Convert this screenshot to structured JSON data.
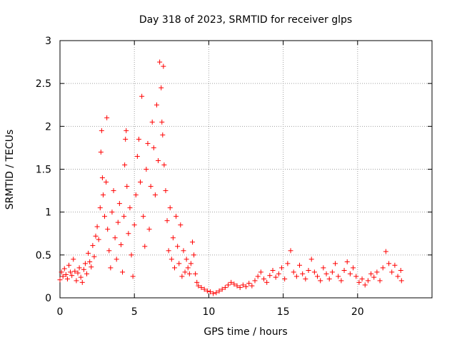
{
  "chart_data": {
    "type": "scatter",
    "title": "Day 318 of 2023, SRMTID for receiver glps",
    "xlabel": "GPS time / hours",
    "ylabel": "SRMTID / TECUs",
    "xlim": [
      0,
      25
    ],
    "ylim": [
      0,
      3
    ],
    "xticks": [
      0,
      5,
      10,
      15,
      20
    ],
    "yticks": [
      0,
      0.5,
      1,
      1.5,
      2,
      2.5,
      3
    ],
    "xtick_labels": [
      "0",
      "5",
      "10",
      "15",
      "20"
    ],
    "ytick_labels": [
      "0",
      "0.5",
      "1",
      "1.5",
      "2",
      "2.5",
      "3"
    ],
    "grid": true,
    "marker": "+",
    "color": "#ff0000",
    "series": [
      {
        "name": "SRMTID",
        "points": [
          [
            0.0,
            0.21
          ],
          [
            0.1,
            0.3
          ],
          [
            0.2,
            0.25
          ],
          [
            0.3,
            0.34
          ],
          [
            0.4,
            0.27
          ],
          [
            0.5,
            0.22
          ],
          [
            0.6,
            0.38
          ],
          [
            0.7,
            0.3
          ],
          [
            0.8,
            0.26
          ],
          [
            0.9,
            0.45
          ],
          [
            1.0,
            0.31
          ],
          [
            1.1,
            0.2
          ],
          [
            1.2,
            0.29
          ],
          [
            1.3,
            0.35
          ],
          [
            1.4,
            0.24
          ],
          [
            1.5,
            0.18
          ],
          [
            1.6,
            0.33
          ],
          [
            1.7,
            0.4
          ],
          [
            1.8,
            0.28
          ],
          [
            1.9,
            0.52
          ],
          [
            2.0,
            0.42
          ],
          [
            2.1,
            0.36
          ],
          [
            2.2,
            0.61
          ],
          [
            2.3,
            0.48
          ],
          [
            2.4,
            0.72
          ],
          [
            2.5,
            0.83
          ],
          [
            2.6,
            0.68
          ],
          [
            2.7,
            1.05
          ],
          [
            2.75,
            1.7
          ],
          [
            2.8,
            1.95
          ],
          [
            2.85,
            1.4
          ],
          [
            2.9,
            1.2
          ],
          [
            3.0,
            0.95
          ],
          [
            3.1,
            1.35
          ],
          [
            3.15,
            2.1
          ],
          [
            3.2,
            0.8
          ],
          [
            3.3,
            0.55
          ],
          [
            3.4,
            0.35
          ],
          [
            3.5,
            1.0
          ],
          [
            3.6,
            1.25
          ],
          [
            3.7,
            0.7
          ],
          [
            3.8,
            0.45
          ],
          [
            3.9,
            0.88
          ],
          [
            4.0,
            1.1
          ],
          [
            4.1,
            0.62
          ],
          [
            4.2,
            0.3
          ],
          [
            4.3,
            0.95
          ],
          [
            4.35,
            1.55
          ],
          [
            4.4,
            1.85
          ],
          [
            4.45,
            1.95
          ],
          [
            4.5,
            1.3
          ],
          [
            4.6,
            0.75
          ],
          [
            4.7,
            1.05
          ],
          [
            4.8,
            0.5
          ],
          [
            4.9,
            0.25
          ],
          [
            5.0,
            0.85
          ],
          [
            5.1,
            1.2
          ],
          [
            5.2,
            1.65
          ],
          [
            5.3,
            1.85
          ],
          [
            5.4,
            1.35
          ],
          [
            5.5,
            2.35
          ],
          [
            5.6,
            0.95
          ],
          [
            5.7,
            0.6
          ],
          [
            5.8,
            1.5
          ],
          [
            5.9,
            1.8
          ],
          [
            6.0,
            0.8
          ],
          [
            6.1,
            1.3
          ],
          [
            6.2,
            2.05
          ],
          [
            6.3,
            1.75
          ],
          [
            6.4,
            1.2
          ],
          [
            6.5,
            2.25
          ],
          [
            6.6,
            1.6
          ],
          [
            6.7,
            2.75
          ],
          [
            6.8,
            2.45
          ],
          [
            6.85,
            2.05
          ],
          [
            6.9,
            1.9
          ],
          [
            6.95,
            2.7
          ],
          [
            7.0,
            1.55
          ],
          [
            7.1,
            1.25
          ],
          [
            7.2,
            0.9
          ],
          [
            7.3,
            0.55
          ],
          [
            7.4,
            1.05
          ],
          [
            7.5,
            0.45
          ],
          [
            7.6,
            0.7
          ],
          [
            7.7,
            0.35
          ],
          [
            7.8,
            0.95
          ],
          [
            7.9,
            0.6
          ],
          [
            8.0,
            0.4
          ],
          [
            8.1,
            0.85
          ],
          [
            8.2,
            0.25
          ],
          [
            8.3,
            0.55
          ],
          [
            8.4,
            0.3
          ],
          [
            8.5,
            0.45
          ],
          [
            8.6,
            0.35
          ],
          [
            8.7,
            0.28
          ],
          [
            8.8,
            0.4
          ],
          [
            8.9,
            0.65
          ],
          [
            9.0,
            0.5
          ],
          [
            9.1,
            0.28
          ],
          [
            9.2,
            0.18
          ],
          [
            9.3,
            0.14
          ],
          [
            9.5,
            0.12
          ],
          [
            9.7,
            0.1
          ],
          [
            9.9,
            0.08
          ],
          [
            10.1,
            0.07
          ],
          [
            10.3,
            0.05
          ],
          [
            10.5,
            0.06
          ],
          [
            10.7,
            0.08
          ],
          [
            10.9,
            0.1
          ],
          [
            11.1,
            0.12
          ],
          [
            11.3,
            0.15
          ],
          [
            11.5,
            0.18
          ],
          [
            11.7,
            0.16
          ],
          [
            11.9,
            0.14
          ],
          [
            12.1,
            0.12
          ],
          [
            12.3,
            0.15
          ],
          [
            12.5,
            0.13
          ],
          [
            12.7,
            0.17
          ],
          [
            12.9,
            0.14
          ],
          [
            13.1,
            0.2
          ],
          [
            13.3,
            0.25
          ],
          [
            13.5,
            0.3
          ],
          [
            13.7,
            0.22
          ],
          [
            13.9,
            0.18
          ],
          [
            14.1,
            0.26
          ],
          [
            14.3,
            0.32
          ],
          [
            14.5,
            0.24
          ],
          [
            14.7,
            0.28
          ],
          [
            14.9,
            0.35
          ],
          [
            15.1,
            0.22
          ],
          [
            15.3,
            0.4
          ],
          [
            15.5,
            0.55
          ],
          [
            15.7,
            0.3
          ],
          [
            15.9,
            0.25
          ],
          [
            16.1,
            0.38
          ],
          [
            16.3,
            0.28
          ],
          [
            16.5,
            0.22
          ],
          [
            16.7,
            0.32
          ],
          [
            16.9,
            0.45
          ],
          [
            17.1,
            0.3
          ],
          [
            17.3,
            0.25
          ],
          [
            17.5,
            0.2
          ],
          [
            17.7,
            0.35
          ],
          [
            17.9,
            0.28
          ],
          [
            18.1,
            0.22
          ],
          [
            18.3,
            0.3
          ],
          [
            18.5,
            0.4
          ],
          [
            18.7,
            0.25
          ],
          [
            18.9,
            0.2
          ],
          [
            19.1,
            0.32
          ],
          [
            19.3,
            0.42
          ],
          [
            19.5,
            0.28
          ],
          [
            19.7,
            0.35
          ],
          [
            19.9,
            0.25
          ],
          [
            20.1,
            0.18
          ],
          [
            20.3,
            0.22
          ],
          [
            20.5,
            0.15
          ],
          [
            20.7,
            0.2
          ],
          [
            20.9,
            0.28
          ],
          [
            21.1,
            0.24
          ],
          [
            21.3,
            0.3
          ],
          [
            21.5,
            0.2
          ],
          [
            21.7,
            0.35
          ],
          [
            21.9,
            0.54
          ],
          [
            22.1,
            0.4
          ],
          [
            22.3,
            0.3
          ],
          [
            22.5,
            0.38
          ],
          [
            22.7,
            0.25
          ],
          [
            22.9,
            0.32
          ],
          [
            22.95,
            0.2
          ]
        ]
      }
    ]
  }
}
